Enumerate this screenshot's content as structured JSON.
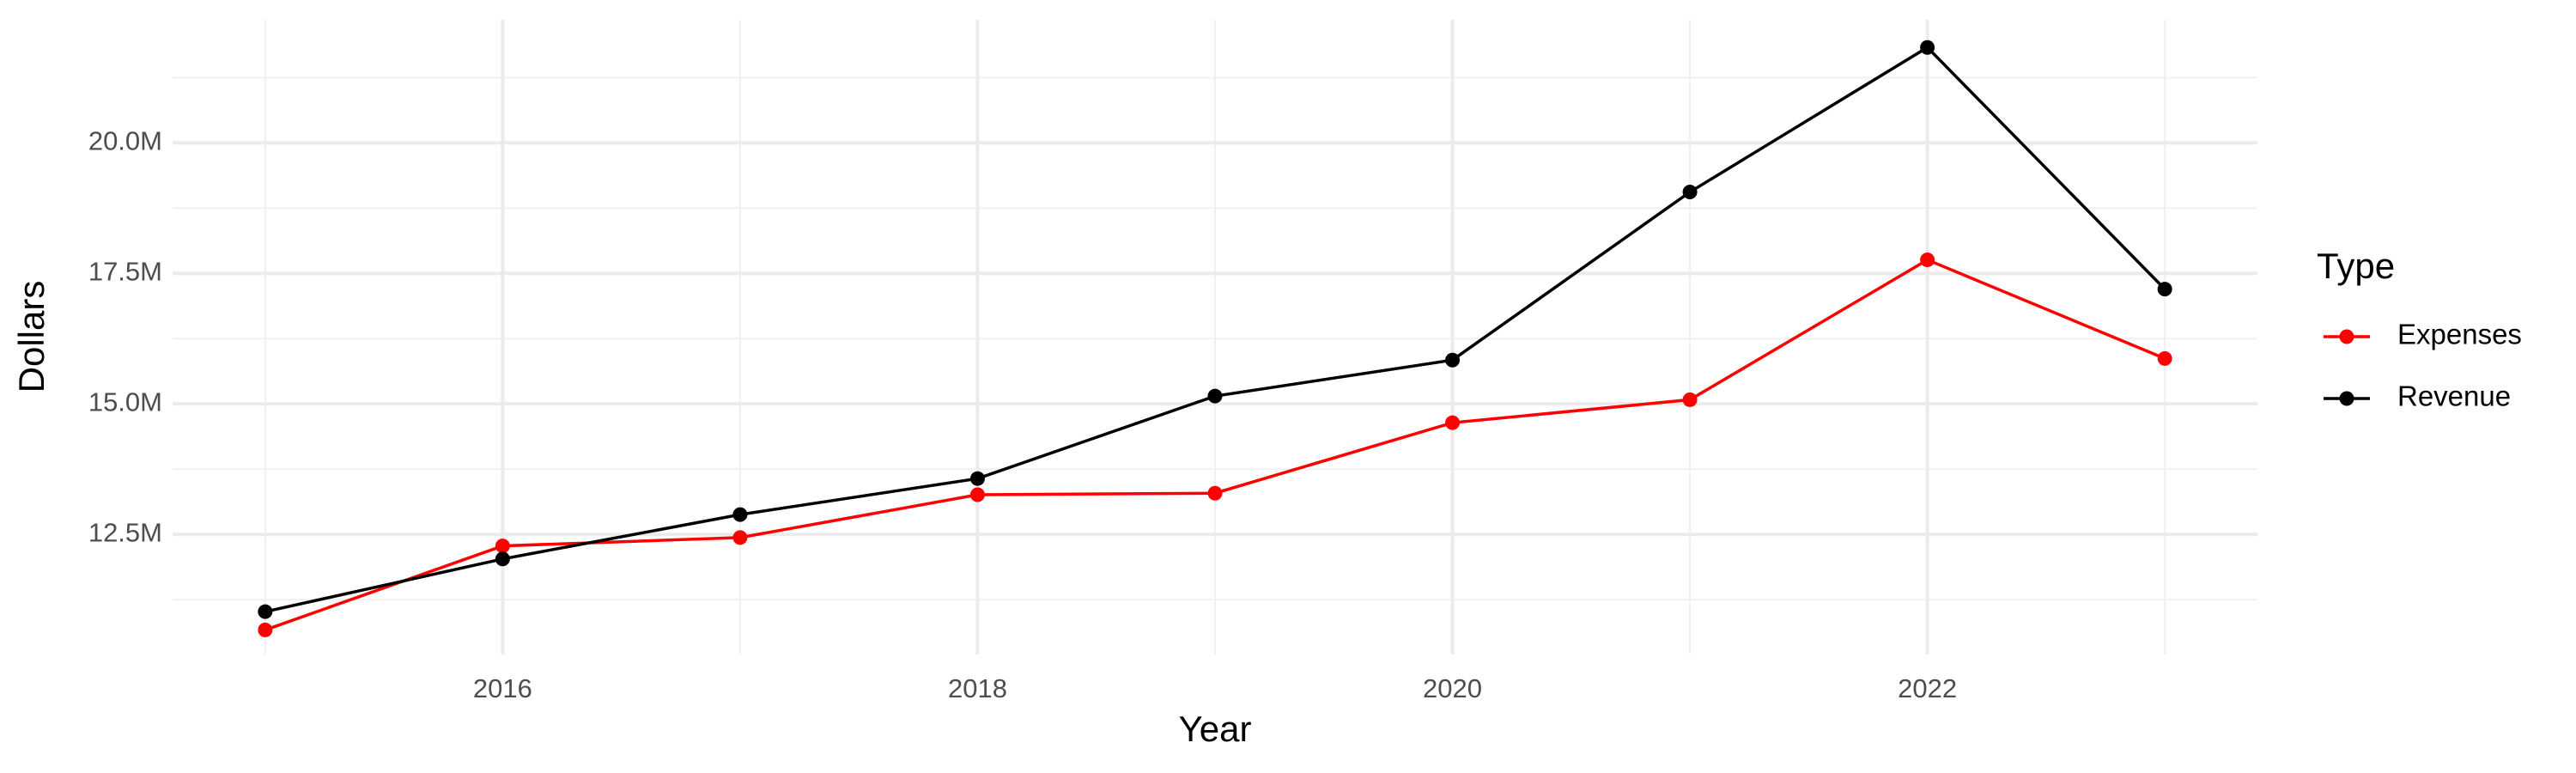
{
  "chart_data": {
    "type": "line",
    "x_label": "Year",
    "y_label": "Dollars",
    "legend_title": "Type",
    "x": [
      2015,
      2016,
      2017,
      2018,
      2019,
      2020,
      2021,
      2022,
      2023
    ],
    "series": [
      {
        "name": "Expenses",
        "color": "#ff0000",
        "values": [
          10670000,
          12280000,
          12440000,
          13260000,
          13290000,
          14640000,
          15080000,
          17760000,
          15870000
        ]
      },
      {
        "name": "Revenue",
        "color": "#000000",
        "values": [
          11020000,
          12030000,
          12880000,
          13570000,
          15150000,
          15840000,
          19060000,
          21830000,
          17200000
        ]
      }
    ],
    "xlim": [
      2014.61,
      2023.39
    ],
    "xticks": [
      2016,
      2018,
      2020,
      2022
    ],
    "ylim": [
      10200000,
      22360000
    ],
    "yticks": [
      {
        "value": 12500000,
        "label": "12.5M"
      },
      {
        "value": 15000000,
        "label": "15.0M"
      },
      {
        "value": 17500000,
        "label": "17.5M"
      },
      {
        "value": 20000000,
        "label": "20.0M"
      }
    ],
    "grid": true,
    "legend": "right"
  }
}
